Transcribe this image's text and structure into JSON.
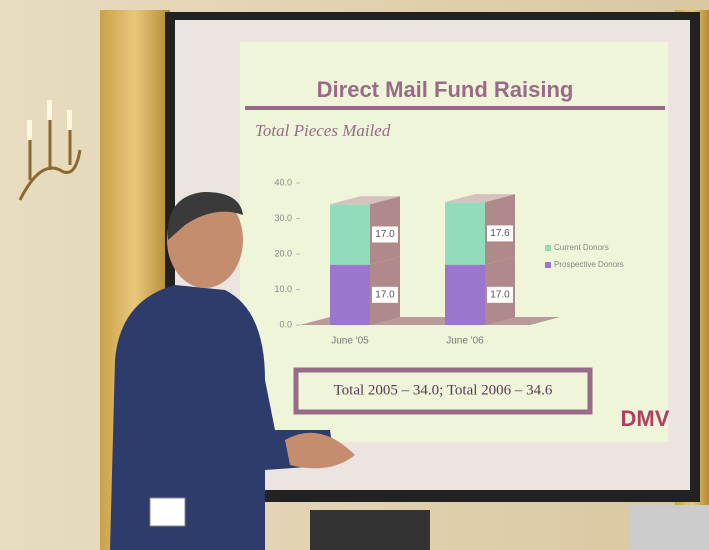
{
  "chart_data": {
    "type": "bar",
    "stacked": true,
    "title": "Direct Mail Fund Raising",
    "subtitle": "Total Pieces Mailed",
    "categories": [
      "June '05",
      "June '06"
    ],
    "series": [
      {
        "name": "Prospective Donors",
        "color": "#9a76cc",
        "values": [
          17,
          17
        ],
        "value_labels": [
          "17.0",
          "17.0"
        ]
      },
      {
        "name": "Current Donors",
        "color": "#92dcbc",
        "values": [
          17,
          17.6
        ],
        "value_labels": [
          "17.0",
          "17.6"
        ]
      }
    ],
    "ylim": [
      0,
      40
    ],
    "yticks": [
      {
        "value": 0,
        "label": "0.0"
      },
      {
        "value": 10,
        "label": "10.0"
      },
      {
        "value": 20,
        "label": "20.0"
      },
      {
        "value": 30,
        "label": "30.0"
      },
      {
        "value": 40,
        "label": "40.0"
      }
    ],
    "annotation": "Total 2005 – 34.0; Total 2006 – 34.6",
    "logo": "DMV"
  }
}
